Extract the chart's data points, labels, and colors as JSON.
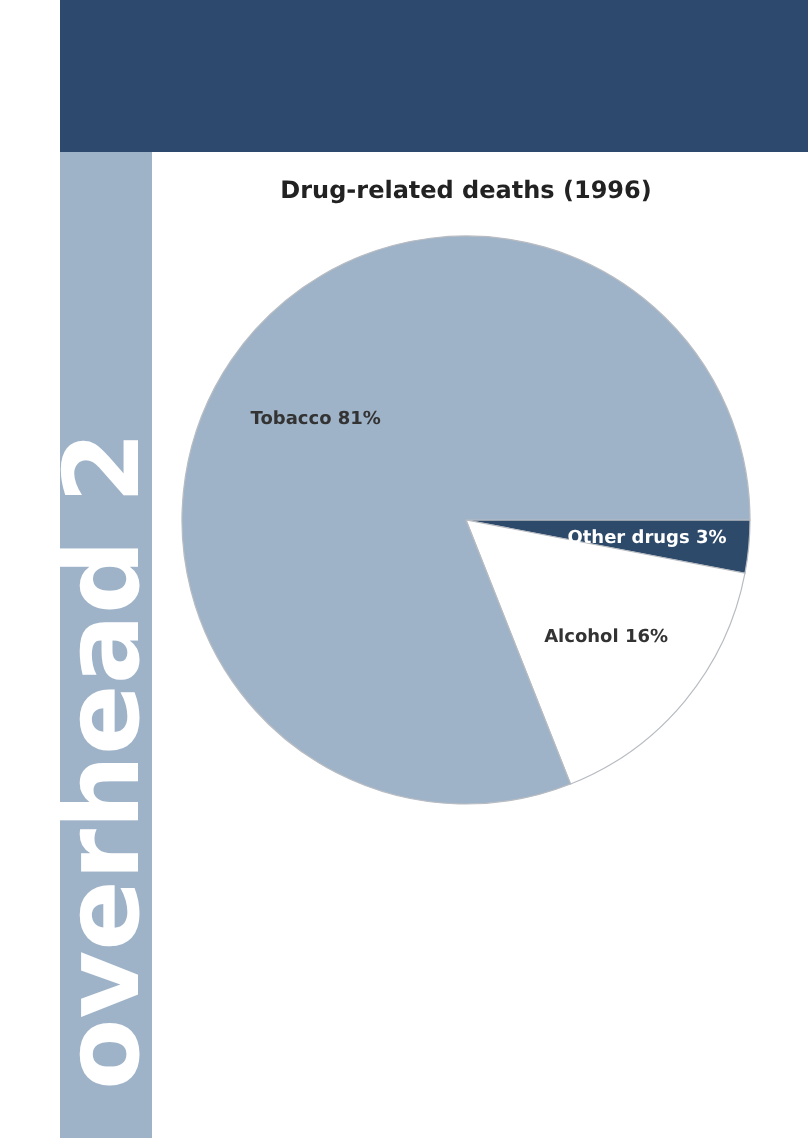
{
  "chart_data": {
    "type": "pie",
    "title": "Drug-related deaths (1996)",
    "categories": [
      "Other drugs",
      "Alcohol",
      "Tobacco"
    ],
    "values": [
      3,
      16,
      81
    ],
    "colors": [
      "#2e4a6b",
      "#ffffff",
      "#9fb3c8"
    ],
    "value_labels": [
      "3%",
      "16%",
      "81%"
    ],
    "legend": false,
    "annotations": [
      "overhead 2"
    ]
  }
}
